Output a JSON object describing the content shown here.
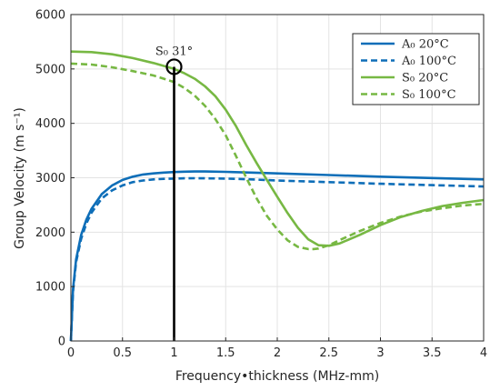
{
  "chart_data": {
    "type": "line",
    "xlabel": "Frequency•thickness (MHz-mm)",
    "ylabel": "Group Velocity (m s⁻¹)",
    "xlim": [
      0,
      4
    ],
    "ylim": [
      0,
      6000
    ],
    "xticks": [
      0,
      0.5,
      1,
      1.5,
      2,
      2.5,
      3,
      3.5,
      4
    ],
    "xtick_labels": [
      "0",
      "0.5",
      "1",
      "1.5",
      "2",
      "2.5",
      "3",
      "3.5",
      "4"
    ],
    "yticks": [
      0,
      1000,
      2000,
      3000,
      4000,
      5000,
      6000
    ],
    "ytick_labels": [
      "0",
      "1000",
      "2000",
      "3000",
      "4000",
      "5000",
      "6000"
    ],
    "grid": true,
    "legend_position": "top-right",
    "colors": {
      "A0": "#0E6EB8",
      "S0": "#77B843",
      "marker": "#000000"
    },
    "series": [
      {
        "name": "A₀ 20°C",
        "style": "solid",
        "color": "#0E6EB8",
        "x": [
          0,
          0.02,
          0.05,
          0.1,
          0.15,
          0.2,
          0.3,
          0.4,
          0.5,
          0.6,
          0.7,
          0.8,
          0.9,
          1.0,
          1.1,
          1.2,
          1.3,
          1.5,
          1.75,
          2.0,
          2.5,
          3.0,
          3.5,
          4.0
        ],
        "y": [
          0,
          950,
          1500,
          1950,
          2230,
          2430,
          2700,
          2860,
          2960,
          3020,
          3060,
          3080,
          3095,
          3105,
          3112,
          3115,
          3115,
          3108,
          3095,
          3080,
          3050,
          3020,
          2995,
          2970
        ]
      },
      {
        "name": "A₀ 100°C",
        "style": "dashed",
        "color": "#0E6EB8",
        "x": [
          0,
          0.02,
          0.05,
          0.1,
          0.15,
          0.2,
          0.3,
          0.4,
          0.5,
          0.6,
          0.7,
          0.8,
          0.9,
          1.0,
          1.1,
          1.2,
          1.3,
          1.5,
          1.75,
          2.0,
          2.5,
          3.0,
          3.5,
          4.0
        ],
        "y": [
          0,
          900,
          1450,
          1880,
          2160,
          2360,
          2620,
          2770,
          2860,
          2920,
          2950,
          2970,
          2980,
          2985,
          2990,
          2992,
          2990,
          2985,
          2970,
          2950,
          2920,
          2890,
          2865,
          2840
        ]
      },
      {
        "name": "S₀ 20°C",
        "style": "solid",
        "color": "#77B843",
        "x": [
          0,
          0.2,
          0.4,
          0.6,
          0.8,
          1.0,
          1.1,
          1.2,
          1.3,
          1.4,
          1.5,
          1.6,
          1.7,
          1.8,
          1.9,
          2.0,
          2.1,
          2.2,
          2.3,
          2.4,
          2.5,
          2.6,
          2.8,
          3.0,
          3.2,
          3.4,
          3.6,
          3.8,
          4.0
        ],
        "y": [
          5320,
          5310,
          5270,
          5200,
          5110,
          5000,
          4920,
          4820,
          4680,
          4500,
          4250,
          3950,
          3600,
          3270,
          2960,
          2650,
          2350,
          2080,
          1870,
          1760,
          1750,
          1790,
          1950,
          2130,
          2280,
          2390,
          2480,
          2540,
          2590
        ]
      },
      {
        "name": "S₀ 100°C",
        "style": "dashed",
        "color": "#77B843",
        "x": [
          0,
          0.2,
          0.4,
          0.6,
          0.8,
          1.0,
          1.1,
          1.2,
          1.3,
          1.4,
          1.5,
          1.6,
          1.7,
          1.8,
          1.9,
          2.0,
          2.1,
          2.2,
          2.3,
          2.35,
          2.4,
          2.5,
          2.6,
          2.8,
          3.0,
          3.2,
          3.4,
          3.6,
          3.8,
          4.0
        ],
        "y": [
          5100,
          5080,
          5030,
          4960,
          4880,
          4760,
          4650,
          4510,
          4320,
          4080,
          3780,
          3400,
          3000,
          2620,
          2300,
          2050,
          1850,
          1730,
          1690,
          1690,
          1700,
          1760,
          1850,
          2020,
          2170,
          2290,
          2380,
          2440,
          2490,
          2520
        ]
      }
    ],
    "annotations": [
      {
        "text": "S₀ 31°",
        "x": 1.0,
        "y": 5040,
        "marker": "circle"
      }
    ],
    "vertical_line": {
      "x": 1.0,
      "y_from": 0,
      "y_to": 5040
    }
  }
}
